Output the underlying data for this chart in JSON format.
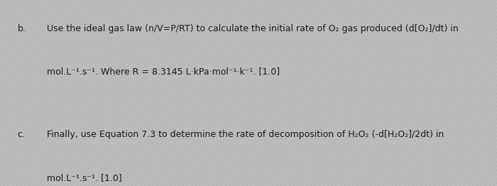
{
  "background_color": "#b8b8b8",
  "stripe_color1": "#b0b8b0",
  "stripe_color2": "#c0c8c0",
  "text_color": "#1a1a1a",
  "label_b": "b.",
  "line1_b": "Use the ideal gas law (n/V=P/RT) to calculate the initial rate of O₂ gas produced (d[O₂]/dt) in",
  "line2_b": "mol.L⁻¹.s⁻¹. Where R = 8.3145 L·kPa·mol⁻¹·k⁻¹. [1.0]",
  "label_c": "c.",
  "line1_c": "Finally, use Equation 7.3 to determine the rate of decomposition of H₂O₂ (-d[H₂O₂]/2dt) in",
  "line2_c": "mol.L⁻¹.s⁻¹. [1.0]",
  "font_size": 9.0,
  "label_font_size": 9.0
}
